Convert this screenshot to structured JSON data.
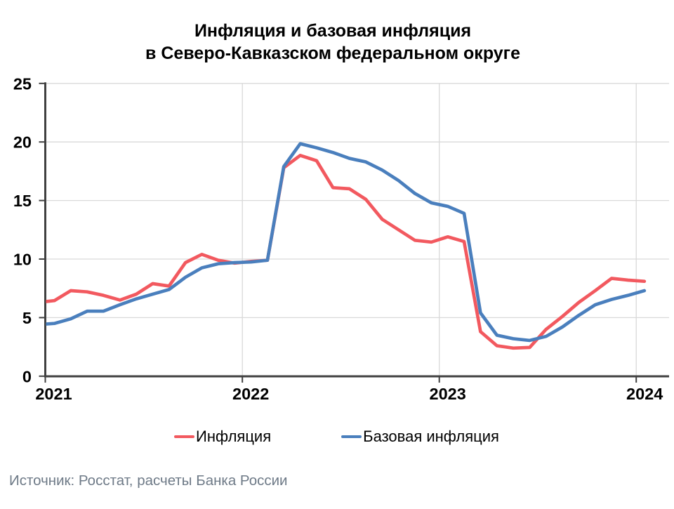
{
  "title": {
    "line1": "Инфляция и базовая инфляция",
    "line2": "в Северо-Кавказском федеральном округе"
  },
  "source": "Источник: Росстат, расчеты Банка России",
  "legend": {
    "items": [
      {
        "label": "Инфляция",
        "color": "#f2595f"
      },
      {
        "label": "Базовая инфляция",
        "color": "#4a7fbd"
      }
    ]
  },
  "chart_data": {
    "type": "line",
    "title": "Инфляция и базовая инфляция в Северо-Кавказском федеральном округе",
    "x_tick_labels": [
      "2021",
      "2022",
      "2023",
      "2024"
    ],
    "y_ticks": [
      0,
      5,
      10,
      15,
      20,
      25
    ],
    "ylim": [
      0,
      25
    ],
    "grid": "horizontal and vertical year lines, light gray",
    "legend_position": "bottom",
    "x": [
      "2020-12",
      "2021-01",
      "2021-02",
      "2021-03",
      "2021-04",
      "2021-05",
      "2021-06",
      "2021-07",
      "2021-08",
      "2021-09",
      "2021-10",
      "2021-11",
      "2021-12",
      "2022-01",
      "2022-02",
      "2022-03",
      "2022-04",
      "2022-05",
      "2022-06",
      "2022-07",
      "2022-08",
      "2022-09",
      "2022-10",
      "2022-11",
      "2022-12",
      "2023-01",
      "2023-02",
      "2023-03",
      "2023-04",
      "2023-05",
      "2023-06",
      "2023-07",
      "2023-08",
      "2023-09",
      "2023-10",
      "2023-11",
      "2023-12",
      "2024-01"
    ],
    "series": [
      {
        "name": "Инфляция",
        "color": "#f2595f",
        "values": [
          6.3,
          6.45,
          7.3,
          7.2,
          6.9,
          6.5,
          7.0,
          7.9,
          7.7,
          9.7,
          10.4,
          9.9,
          9.65,
          9.8,
          9.9,
          17.8,
          18.85,
          18.4,
          16.1,
          16.0,
          15.1,
          13.4,
          12.5,
          11.6,
          11.45,
          11.9,
          11.5,
          3.8,
          2.6,
          2.4,
          2.45,
          4.0,
          5.1,
          6.3,
          7.3,
          8.35,
          8.2,
          8.1
        ]
      },
      {
        "name": "Базовая инфляция",
        "color": "#4a7fbd",
        "values": [
          4.4,
          4.5,
          4.9,
          5.55,
          5.55,
          6.1,
          6.6,
          7.0,
          7.4,
          8.45,
          9.25,
          9.6,
          9.7,
          9.75,
          9.9,
          17.9,
          19.85,
          19.5,
          19.1,
          18.6,
          18.3,
          17.6,
          16.7,
          15.6,
          14.8,
          14.5,
          13.9,
          5.4,
          3.5,
          3.2,
          3.05,
          3.4,
          4.2,
          5.2,
          6.1,
          6.55,
          6.9,
          7.3
        ]
      }
    ]
  }
}
